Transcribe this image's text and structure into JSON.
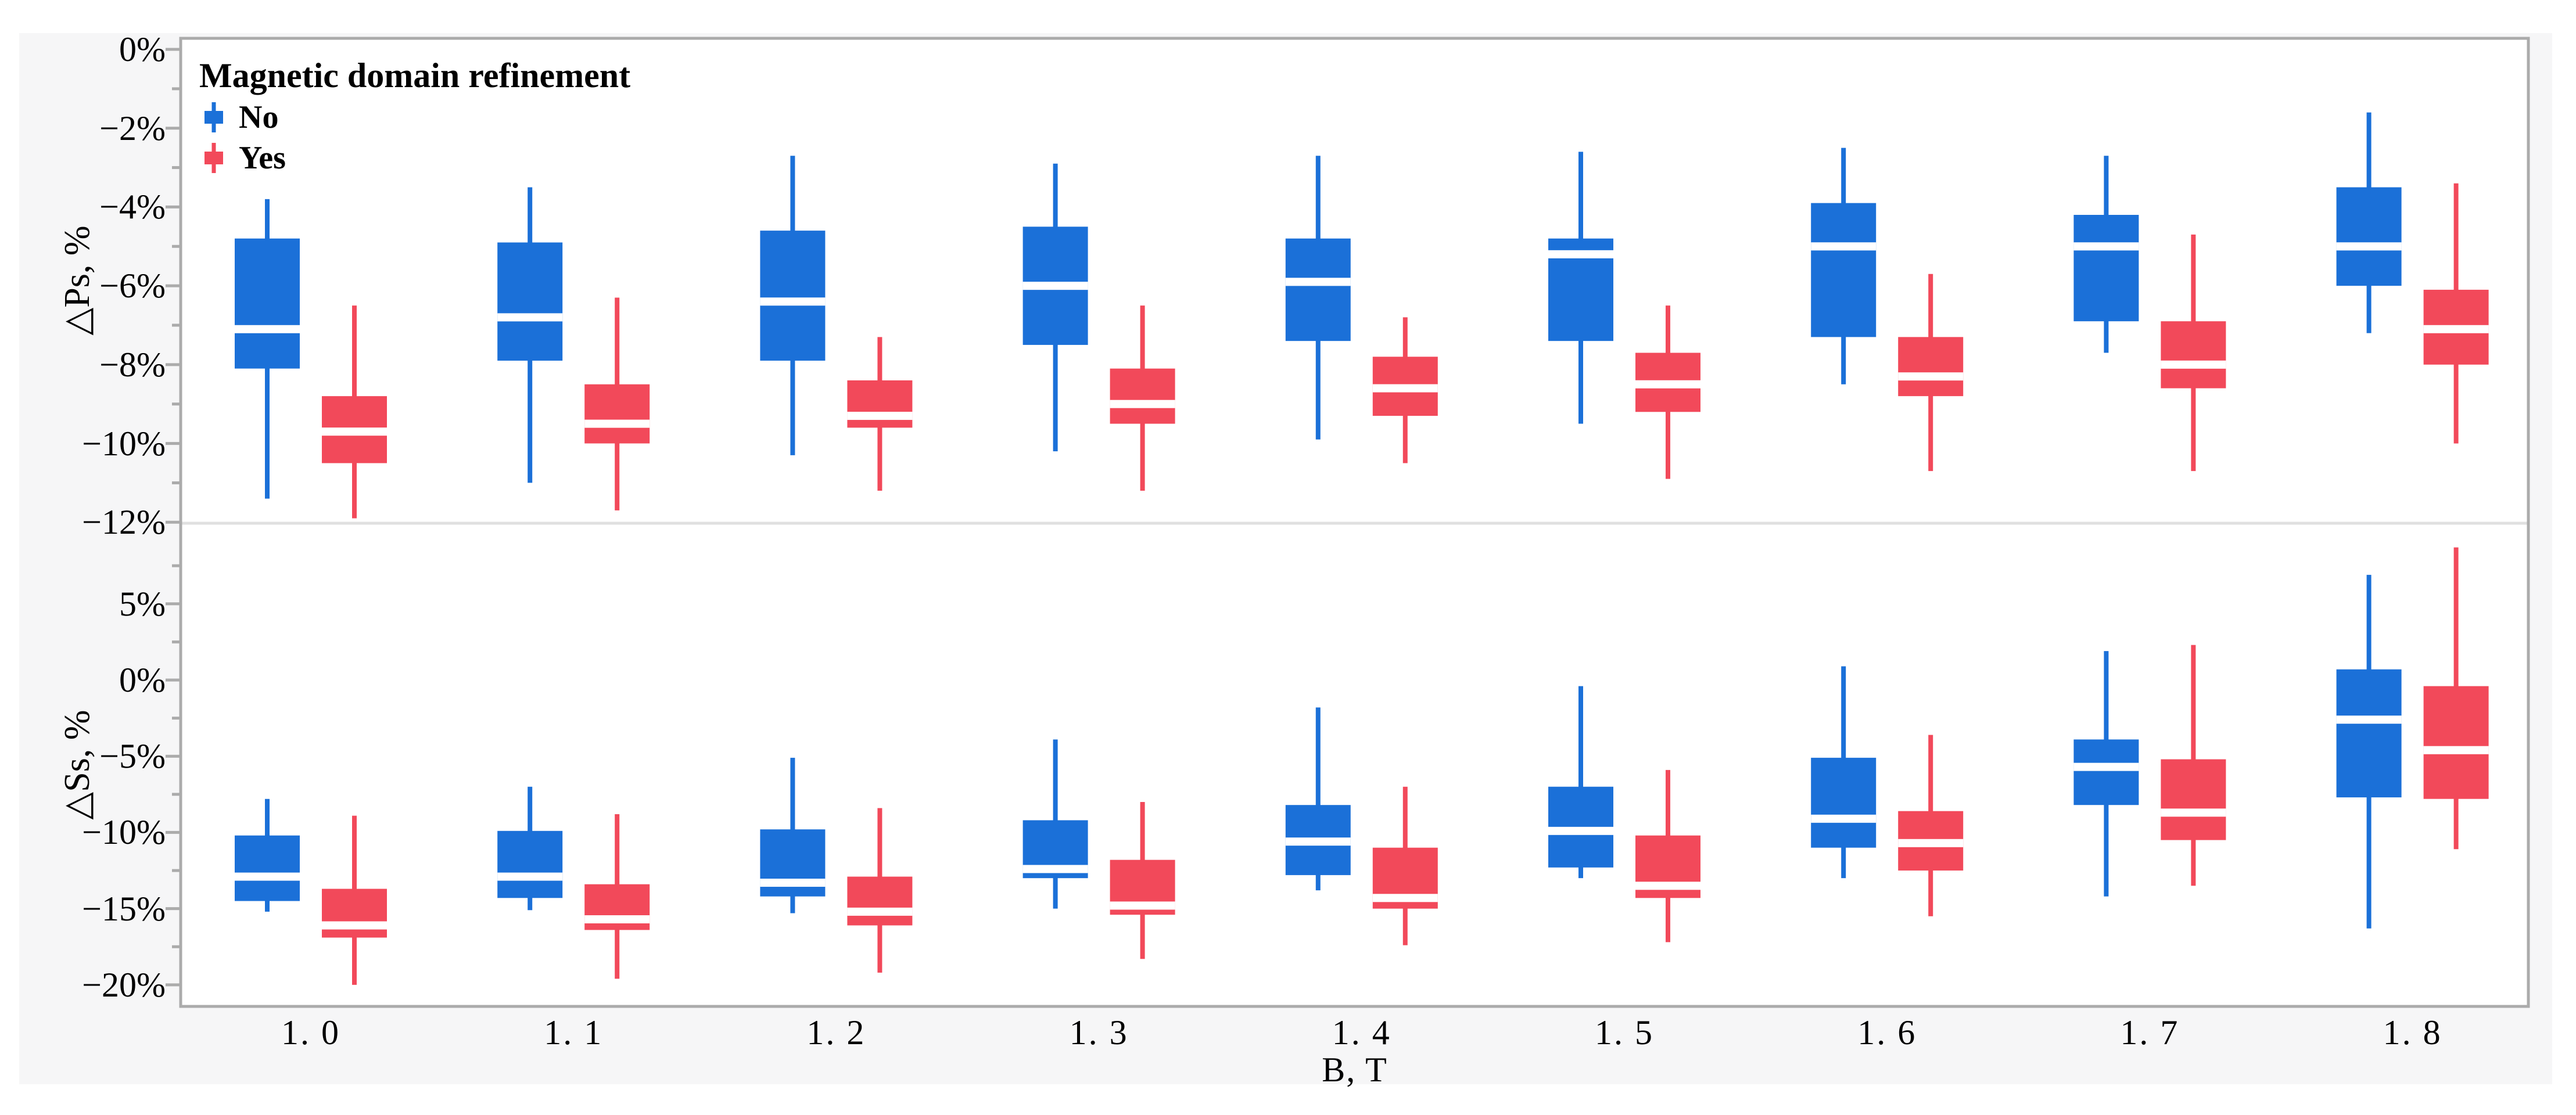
{
  "figure": {
    "page_bg": "#ffffff",
    "canvas_bg": "#f6f6f7",
    "plot_bg": "#ffffff",
    "border_color": "#ababab",
    "divider_color": "#e0e0e0",
    "tick_color": "#ababab",
    "text_color": "#000000"
  },
  "legend": {
    "title": "Magnetic domain refinement",
    "items": [
      {
        "label": "No",
        "color": "#1b70d8"
      },
      {
        "label": "Yes",
        "color": "#f2495a"
      }
    ]
  },
  "x_axis": {
    "title": "B, T",
    "categories": [
      "1. 0",
      "1. 1",
      "1. 2",
      "1. 3",
      "1. 4",
      "1. 5",
      "1. 6",
      "1. 7",
      "1. 8"
    ]
  },
  "chart_data": [
    {
      "type": "box",
      "panel": "top",
      "ylabel": "△Ps, %",
      "xlabel": "B, T",
      "x": [
        1.0,
        1.1,
        1.2,
        1.3,
        1.4,
        1.5,
        1.6,
        1.7,
        1.8
      ],
      "ylim": [
        -12.03,
        0.28
      ],
      "grid": false,
      "legend_position": "top-left-inside",
      "yticks": [
        {
          "v": 0,
          "label": "0%"
        },
        {
          "v": -2,
          "label": "−2%"
        },
        {
          "v": -4,
          "label": "−4%"
        },
        {
          "v": -6,
          "label": "−6%"
        },
        {
          "v": -8,
          "label": "−8%"
        },
        {
          "v": -10,
          "label": "−10%"
        },
        {
          "v": -12,
          "label": "−12%"
        }
      ],
      "yminor": [
        -1,
        -3,
        -5,
        -7,
        -9,
        -11
      ],
      "box_order": [
        "low",
        "q1",
        "median",
        "q3",
        "high"
      ],
      "series": [
        {
          "name": "No",
          "color": "#1b70d8",
          "boxes": [
            [
              -11.4,
              -8.1,
              -7.1,
              -4.8,
              -3.8
            ],
            [
              -11.0,
              -7.9,
              -6.8,
              -4.9,
              -3.5
            ],
            [
              -10.3,
              -7.9,
              -6.4,
              -4.6,
              -2.7
            ],
            [
              -10.2,
              -7.5,
              -6.0,
              -4.5,
              -2.9
            ],
            [
              -9.9,
              -7.4,
              -5.9,
              -4.8,
              -2.7
            ],
            [
              -9.5,
              -7.4,
              -5.2,
              -4.8,
              -2.6
            ],
            [
              -8.5,
              -7.3,
              -5.0,
              -3.9,
              -2.5
            ],
            [
              -7.7,
              -6.9,
              -5.0,
              -4.2,
              -2.7
            ],
            [
              -7.2,
              -6.0,
              -5.0,
              -3.5,
              -1.6
            ]
          ]
        },
        {
          "name": "Yes",
          "color": "#f2495a",
          "boxes": [
            [
              -11.9,
              -10.5,
              -9.7,
              -8.8,
              -6.5
            ],
            [
              -11.7,
              -10.0,
              -9.5,
              -8.5,
              -6.3
            ],
            [
              -11.2,
              -9.6,
              -9.3,
              -8.4,
              -7.3
            ],
            [
              -11.2,
              -9.5,
              -9.0,
              -8.1,
              -6.5
            ],
            [
              -10.5,
              -9.3,
              -8.6,
              -7.8,
              -6.8
            ],
            [
              -10.9,
              -9.2,
              -8.5,
              -7.7,
              -6.5
            ],
            [
              -10.7,
              -8.8,
              -8.3,
              -7.3,
              -5.7
            ],
            [
              -10.7,
              -8.6,
              -8.0,
              -6.9,
              -4.7
            ],
            [
              -10.0,
              -8.0,
              -7.1,
              -6.1,
              -3.4
            ]
          ]
        }
      ]
    },
    {
      "type": "box",
      "panel": "bottom",
      "ylabel": "△Ss, %",
      "xlabel": "B, T",
      "x": [
        1.0,
        1.1,
        1.2,
        1.3,
        1.4,
        1.5,
        1.6,
        1.7,
        1.8
      ],
      "ylim": [
        -21.42,
        10.29
      ],
      "grid": false,
      "yticks": [
        {
          "v": 5,
          "label": "5%"
        },
        {
          "v": 0,
          "label": "0%"
        },
        {
          "v": -5,
          "label": "−5%"
        },
        {
          "v": -10,
          "label": "−10%"
        },
        {
          "v": -15,
          "label": "−15%"
        },
        {
          "v": -20,
          "label": "−20%"
        }
      ],
      "yminor": [
        7.5,
        2.5,
        -2.5,
        -7.5,
        -12.5,
        -17.5
      ],
      "box_order": [
        "low",
        "q1",
        "median",
        "q3",
        "high"
      ],
      "series": [
        {
          "name": "No",
          "color": "#1b70d8",
          "boxes": [
            [
              -15.2,
              -14.5,
              -12.9,
              -10.2,
              -7.8
            ],
            [
              -15.1,
              -14.3,
              -12.9,
              -9.9,
              -7.0
            ],
            [
              -15.3,
              -14.2,
              -13.3,
              -9.8,
              -5.1
            ],
            [
              -15.0,
              -13.0,
              -12.4,
              -9.2,
              -3.9
            ],
            [
              -13.8,
              -12.8,
              -10.6,
              -8.2,
              -1.8
            ],
            [
              -13.0,
              -12.3,
              -9.9,
              -7.0,
              -0.4
            ],
            [
              -13.0,
              -11.0,
              -9.1,
              -5.1,
              0.9
            ],
            [
              -14.2,
              -8.2,
              -5.7,
              -3.9,
              1.9
            ],
            [
              -16.3,
              -7.7,
              -2.6,
              0.7,
              6.9
            ]
          ]
        },
        {
          "name": "Yes",
          "color": "#f2495a",
          "boxes": [
            [
              -20.0,
              -16.9,
              -16.1,
              -13.7,
              -8.9
            ],
            [
              -19.6,
              -16.4,
              -15.7,
              -13.4,
              -8.8
            ],
            [
              -19.2,
              -16.1,
              -15.2,
              -12.9,
              -8.4
            ],
            [
              -18.3,
              -15.4,
              -14.8,
              -11.8,
              -8.0
            ],
            [
              -17.4,
              -15.0,
              -14.3,
              -11.0,
              -7.0
            ],
            [
              -17.2,
              -14.3,
              -13.5,
              -10.2,
              -5.9
            ],
            [
              -15.5,
              -12.5,
              -10.7,
              -8.6,
              -3.6
            ],
            [
              -13.5,
              -10.5,
              -8.7,
              -5.2,
              2.3
            ],
            [
              -11.1,
              -7.8,
              -4.6,
              -0.4,
              8.7
            ]
          ]
        }
      ]
    }
  ]
}
